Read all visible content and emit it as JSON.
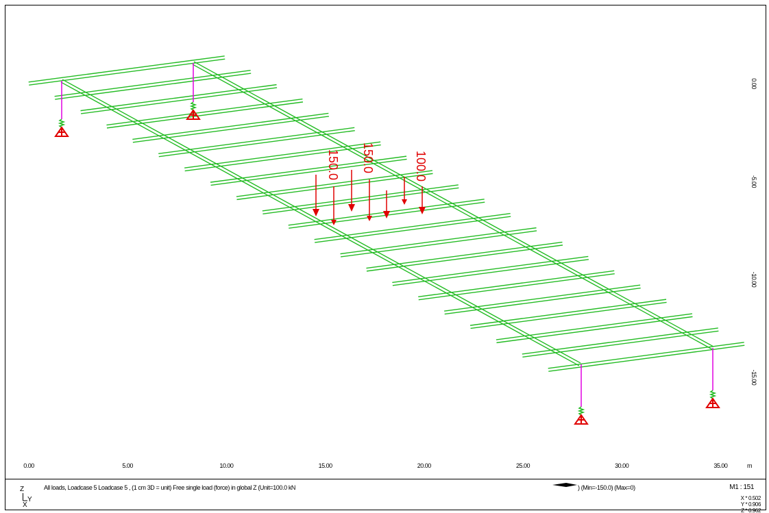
{
  "x_ruler": {
    "labels": [
      "0.00",
      "5.00",
      "10.00",
      "15.00",
      "20.00",
      "25.00",
      "30.00",
      "35.00"
    ],
    "unit": "m"
  },
  "y_ruler": {
    "labels": [
      "0.00",
      "-5.00",
      "-10.00",
      "-15.00"
    ]
  },
  "loads": {
    "labels": [
      "150.0",
      "150.0",
      "100.0"
    ]
  },
  "footer": {
    "description": "All loads, Loadcase 5 Loadcase 5 , (1 cm 3D = unit) Free single load (force) in global Z (Unit=100.0 kN",
    "range": ") (Min=-150.0) (Max=0)",
    "scale": "M1 : 151",
    "factors": [
      "X * 0.502",
      "Y * 0.906",
      "Z * 0.962"
    ],
    "axes": {
      "z": "Z",
      "y": "Y",
      "x": "X"
    }
  }
}
